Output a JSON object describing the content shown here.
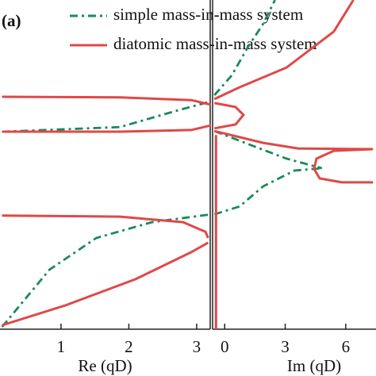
{
  "chart_data": [
    {
      "type": "line",
      "label": "(a)",
      "xlabel": "Re (qD)",
      "xlim": [
        0.1,
        3.2
      ],
      "xticks": [
        1,
        2,
        3
      ],
      "ylim": [
        0,
        1
      ],
      "series": [
        {
          "name": "simple mass-in-mass system",
          "color": "#1a8a5a",
          "dash": "dash-dot",
          "x": [
            0.13,
            1.87,
            2.69,
            3.21,
            null,
            0.13,
            0.83,
            1.52,
            2.34,
            3.21
          ],
          "values": [
            0.6,
            0.614,
            0.663,
            0.692,
            null,
            0.007,
            0.181,
            0.277,
            0.325,
            0.349
          ]
        },
        {
          "name": "diatomic mass-in-mass system",
          "color": "#e04848",
          "dash": "solid",
          "x": [
            0.13,
            1.87,
            2.92,
            3.21,
            null,
            3.21,
            2.92,
            1.87,
            0.13,
            null,
            0.13,
            1.87,
            2.8,
            3.13,
            3.17,
            null,
            3.17,
            2.92,
            2.1,
            1.06,
            0.13
          ],
          "values": [
            0.706,
            0.704,
            0.696,
            0.682,
            null,
            0.619,
            0.605,
            0.6,
            0.6,
            null,
            0.345,
            0.342,
            0.325,
            0.296,
            0.277,
            null,
            0.263,
            0.234,
            0.152,
            0.072,
            0.012
          ]
        }
      ]
    },
    {
      "type": "line",
      "xlabel": "Im (qD)",
      "xlim": [
        -0.6,
        7.5
      ],
      "xticks": [
        0,
        3,
        6
      ],
      "ylim": [
        0,
        1
      ],
      "series": [
        {
          "color": "#1a8a5a",
          "dash": "dash-dot",
          "x": [
            -0.51,
            0.35,
            1.13,
            1.91,
            2.49,
            null,
            -0.51,
            1.52,
            3.07,
            4.82,
            null,
            -0.51,
            0.74,
            1.91,
            3.46,
            4.82
          ],
          "values": [
            0.711,
            0.771,
            0.855,
            0.928,
            1.0,
            null,
            0.602,
            0.554,
            0.518,
            0.489,
            null,
            0.349,
            0.373,
            0.434,
            0.482,
            0.489
          ]
        },
        {
          "color": "#e04848",
          "dash": "solid",
          "x": [
            -0.51,
            0.74,
            3.07,
            5.41,
            6.38,
            null,
            -0.51,
            0.54,
            0.93,
            0.54,
            -0.51,
            null,
            -0.43,
            -0.43,
            null,
            -0.51,
            1.91,
            3.66,
            7.35,
            null,
            7.35,
            5.41,
            4.55,
            4.43,
            4.71,
            5.8,
            7.35
          ],
          "values": [
            0.699,
            0.735,
            0.795,
            0.904,
            1.0,
            null,
            0.687,
            0.675,
            0.651,
            0.622,
            0.61,
            null,
            0.59,
            0.0,
            null,
            0.602,
            0.566,
            0.549,
            0.547,
            null,
            0.547,
            0.542,
            0.518,
            0.487,
            0.458,
            0.446,
            0.446
          ]
        }
      ]
    }
  ]
}
